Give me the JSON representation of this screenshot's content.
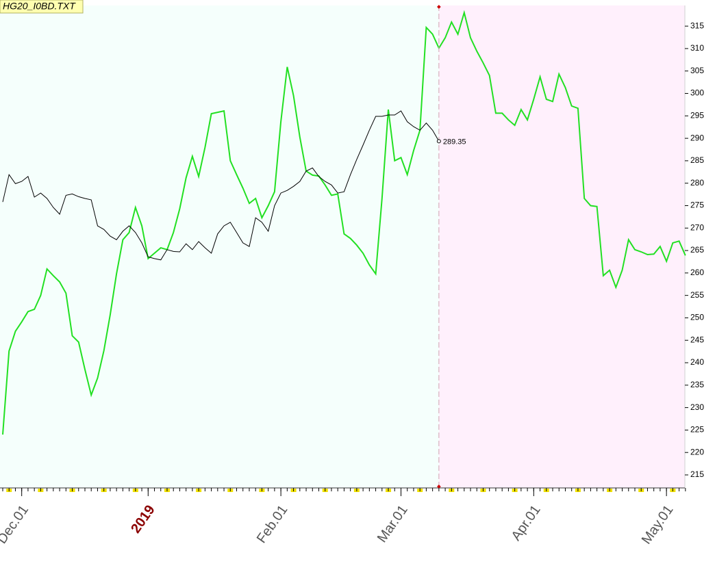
{
  "chart_data": {
    "type": "line",
    "title": "HG20_I0BD.TXT",
    "categories": [
      null,
      null,
      null,
      "Dec.01",
      null,
      null,
      null,
      null,
      null,
      null,
      null,
      null,
      null,
      null,
      null,
      null,
      null,
      null,
      null,
      null,
      null,
      null,
      null,
      "2019",
      null,
      null,
      null,
      null,
      null,
      null,
      null,
      null,
      null,
      null,
      null,
      null,
      null,
      null,
      null,
      null,
      null,
      null,
      null,
      null,
      "Feb.01",
      null,
      null,
      null,
      null,
      null,
      null,
      null,
      null,
      null,
      null,
      null,
      null,
      null,
      null,
      null,
      null,
      null,
      null,
      "Mar.01",
      null,
      null,
      null,
      null,
      null,
      null,
      null,
      null,
      null,
      null,
      null,
      null,
      null,
      null,
      null,
      null,
      null,
      null,
      null,
      null,
      "Apr.01",
      null,
      null,
      null,
      null,
      null,
      null,
      null,
      null,
      null,
      null,
      null,
      null,
      null,
      null,
      null,
      null,
      null,
      null,
      null,
      null,
      "May.01",
      null,
      null,
      null
    ],
    "series": [
      {
        "color": "#22e022",
        "values": [
          224,
          242.6,
          247,
          249.1,
          251.4,
          251.9,
          255,
          260.9,
          259.4,
          258,
          255.5,
          246,
          244.6,
          238.5,
          232.8,
          236.6,
          242.7,
          250.7,
          259.8,
          267.4,
          269,
          274.6,
          270.5,
          263.2,
          264.4,
          265.6,
          265.2,
          269,
          274.3,
          281.2,
          286,
          281.5,
          288,
          295.5,
          295.8,
          296.1,
          285,
          281.9,
          278.9,
          275.5,
          276.6,
          272.3,
          275,
          278.1,
          293.7,
          305.9,
          299.5,
          290.3,
          282.7,
          281.8,
          281.6,
          279.6,
          277.3,
          277.6,
          268.7,
          267.7,
          266.2,
          264.4,
          261.8,
          259.8,
          276.6,
          296.4,
          285,
          285.7,
          281.9,
          287.3,
          291.8,
          314.7,
          313.2,
          310.1,
          312.4,
          315.9,
          313.2,
          318,
          312.4,
          309.4,
          306.8,
          304,
          295.6,
          295.6,
          294.1,
          292.9,
          296.4,
          294.1,
          298.7,
          303.7,
          298.7,
          298.2,
          304.3,
          301.3,
          297.2,
          296.7,
          276.6,
          275,
          274.8,
          259.4,
          260.6,
          256.8,
          260.6,
          267.4,
          265.2,
          264.7,
          264.1,
          264.2,
          265.9,
          262.6,
          266.7,
          267.1,
          263.9
        ]
      },
      {
        "color": "#000000",
        "values": [
          275.8,
          281.9,
          279.9,
          280.4,
          281.5,
          276.9,
          277.8,
          276.6,
          274.6,
          273.1,
          277.3,
          277.6,
          277,
          276.6,
          276.3,
          270.5,
          269.7,
          268.2,
          267.4,
          269.3,
          270.5,
          269,
          266.7,
          263.6,
          263.2,
          262.9,
          265.2,
          264.8,
          264.7,
          266.5,
          265.2,
          267,
          265.6,
          264.4,
          268.7,
          270.5,
          271.3,
          269,
          266.7,
          265.9,
          272.3,
          271.3,
          269.3,
          275,
          277.8,
          278.4,
          279.3,
          280.4,
          282.7,
          283.4,
          281.5,
          280.4,
          279.6,
          277.8,
          278.1,
          281.9,
          285.3,
          288.5,
          291.8,
          294.9,
          294.9,
          295.2,
          295.2,
          296.1,
          293.7,
          292.6,
          291.8,
          293.4,
          291.8,
          289.35,
          null,
          null,
          null,
          null,
          null,
          null,
          null,
          null,
          null,
          null,
          null,
          null,
          null,
          null,
          null,
          null,
          null,
          null,
          null,
          null,
          null,
          null,
          null,
          null,
          null,
          null,
          null,
          null,
          null,
          null,
          null,
          null,
          null,
          null,
          null,
          null,
          null,
          null,
          null
        ]
      }
    ],
    "ylim": [
      212.1,
      319.6
    ],
    "yticks": [
      215,
      220,
      225,
      230,
      235,
      240,
      245,
      250,
      255,
      260,
      265,
      270,
      275,
      280,
      285,
      290,
      295,
      300,
      305,
      310,
      315
    ]
  }
}
